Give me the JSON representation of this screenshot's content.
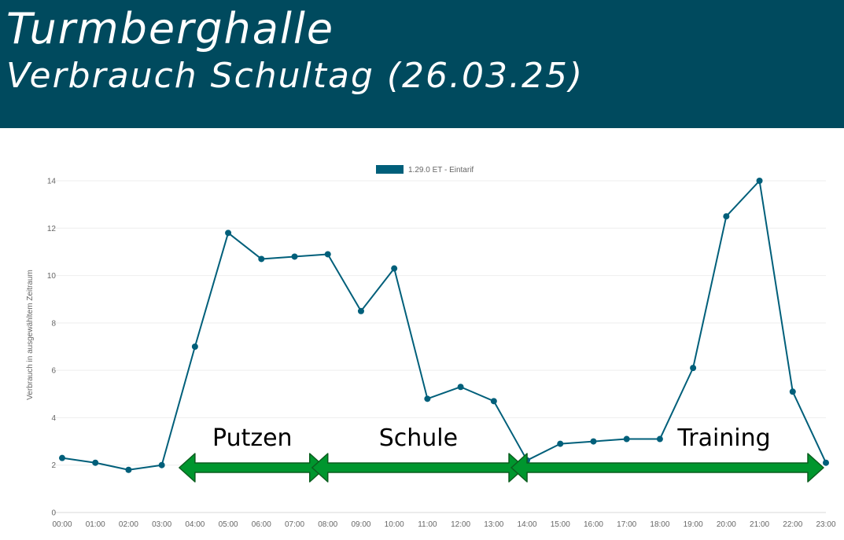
{
  "header": {
    "title": "Turmberghalle",
    "subtitle": "Verbrauch Schultag (26.03.25)"
  },
  "colors": {
    "header_bg": "#004a5e",
    "series": "#005f7a",
    "arrow": "#00962e",
    "arrow_border": "#0b5d1e"
  },
  "chart_data": {
    "type": "line",
    "ylabel": "Verbrauch in ausgewähltem Zeitraum",
    "ylim": [
      0,
      14
    ],
    "yticks": [
      0,
      2,
      4,
      6,
      8,
      10,
      12,
      14
    ],
    "grid": true,
    "legend_position": "top-center",
    "x": [
      "00:00",
      "01:00",
      "02:00",
      "03:00",
      "04:00",
      "05:00",
      "06:00",
      "07:00",
      "08:00",
      "09:00",
      "10:00",
      "11:00",
      "12:00",
      "13:00",
      "14:00",
      "15:00",
      "16:00",
      "17:00",
      "18:00",
      "19:00",
      "20:00",
      "21:00",
      "22:00",
      "23:00"
    ],
    "series": [
      {
        "name": "1.29.0 ET - Eintarif",
        "values": [
          2.3,
          2.1,
          1.8,
          2.0,
          7.0,
          11.8,
          10.7,
          10.8,
          10.9,
          8.5,
          10.3,
          4.8,
          5.3,
          4.7,
          2.2,
          2.9,
          3.0,
          3.1,
          3.1,
          6.1,
          12.5,
          14.0,
          5.1,
          2.1
        ]
      }
    ],
    "annotations": [
      {
        "label": "Putzen",
        "from": "04:00",
        "to": "08:00"
      },
      {
        "label": "Schule",
        "from": "08:00",
        "to": "14:00"
      },
      {
        "label": "Training",
        "from": "14:00",
        "to": "23:00"
      }
    ]
  }
}
